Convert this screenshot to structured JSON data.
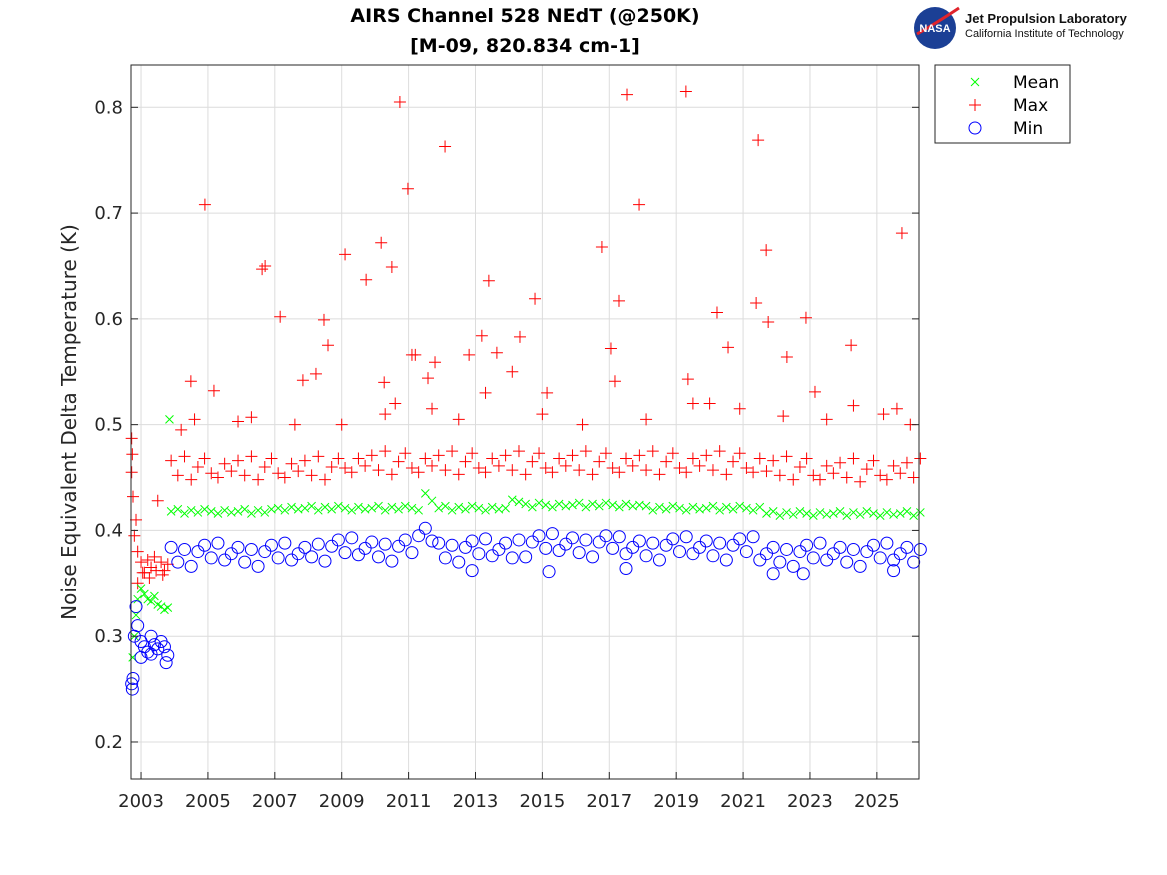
{
  "logo": {
    "org": "Jet Propulsion Laboratory",
    "sub": "California Institute of Technology",
    "badge": "NASA"
  },
  "chart_data": {
    "type": "scatter",
    "title": [
      "AIRS Channel 528 NEdT (@250K)",
      "[M-09, 820.834 cm-1]"
    ],
    "xlabel": "",
    "ylabel": "Noise Equivalent Delta Temperature (K)",
    "xlim": [
      2002.7,
      2026.26
    ],
    "ylim": [
      0.165,
      0.84
    ],
    "xticks": [
      2003,
      2005,
      2007,
      2009,
      2011,
      2013,
      2015,
      2017,
      2019,
      2021,
      2023,
      2025
    ],
    "yticks": [
      0.2,
      0.3,
      0.4,
      0.5,
      0.6,
      0.7,
      0.8
    ],
    "grid": true,
    "legend_position": "outside-top-right",
    "main_x_start": 2003.9,
    "main_x_step": 0.2,
    "series": [
      {
        "name": "Mean",
        "marker": "x",
        "color": "#00ff00",
        "early": [
          [
            2002.75,
            0.28
          ],
          [
            2002.8,
            0.3
          ],
          [
            2002.85,
            0.32
          ],
          [
            2002.9,
            0.335
          ],
          [
            2003.0,
            0.345
          ],
          [
            2003.1,
            0.34
          ],
          [
            2003.2,
            0.335
          ],
          [
            2003.3,
            0.333
          ],
          [
            2003.4,
            0.338
          ],
          [
            2003.5,
            0.33
          ],
          [
            2003.6,
            0.328
          ],
          [
            2003.7,
            0.325
          ],
          [
            2003.8,
            0.327
          ],
          [
            2003.85,
            0.505
          ]
        ],
        "main": [
          0.418,
          0.42,
          0.416,
          0.419,
          0.417,
          0.42,
          0.418,
          0.416,
          0.419,
          0.417,
          0.418,
          0.42,
          0.416,
          0.419,
          0.417,
          0.42,
          0.421,
          0.419,
          0.422,
          0.42,
          0.421,
          0.423,
          0.419,
          0.422,
          0.42,
          0.423,
          0.421,
          0.419,
          0.422,
          0.42,
          0.421,
          0.423,
          0.419,
          0.422,
          0.42,
          0.423,
          0.421,
          0.419,
          0.435,
          0.428,
          0.421,
          0.423,
          0.419,
          0.422,
          0.42,
          0.423,
          0.421,
          0.419,
          0.422,
          0.42,
          0.421,
          0.429,
          0.427,
          0.425,
          0.422,
          0.426,
          0.424,
          0.422,
          0.425,
          0.423,
          0.424,
          0.426,
          0.422,
          0.425,
          0.423,
          0.426,
          0.424,
          0.422,
          0.425,
          0.423,
          0.424,
          0.423,
          0.419,
          0.422,
          0.42,
          0.423,
          0.421,
          0.419,
          0.422,
          0.42,
          0.421,
          0.423,
          0.419,
          0.422,
          0.42,
          0.423,
          0.421,
          0.419,
          0.422,
          0.416,
          0.418,
          0.414,
          0.417,
          0.415,
          0.418,
          0.416,
          0.414,
          0.417,
          0.415,
          0.416,
          0.418,
          0.414,
          0.417,
          0.415,
          0.418,
          0.416,
          0.414,
          0.417,
          0.415,
          0.416,
          0.418,
          0.414,
          0.417
        ],
        "extra": []
      },
      {
        "name": "Max",
        "marker": "+",
        "color": "#ff0000",
        "early": [
          [
            2002.72,
            0.487
          ],
          [
            2002.74,
            0.472
          ],
          [
            2002.72,
            0.455
          ],
          [
            2002.76,
            0.432
          ],
          [
            2002.8,
            0.395
          ],
          [
            2002.85,
            0.41
          ],
          [
            2002.9,
            0.38
          ],
          [
            2003.0,
            0.37
          ],
          [
            2003.1,
            0.36
          ],
          [
            2003.2,
            0.372
          ],
          [
            2003.3,
            0.365
          ],
          [
            2003.4,
            0.375
          ],
          [
            2003.5,
            0.428
          ],
          [
            2003.6,
            0.37
          ],
          [
            2003.7,
            0.362
          ],
          [
            2003.8,
            0.368
          ],
          [
            2002.9,
            0.35
          ],
          [
            2003.05,
            0.36
          ],
          [
            2003.25,
            0.355
          ],
          [
            2003.45,
            0.362
          ],
          [
            2003.65,
            0.358
          ]
        ],
        "main": [
          0.466,
          0.452,
          0.47,
          0.448,
          0.46,
          0.468,
          0.454,
          0.45,
          0.463,
          0.456,
          0.466,
          0.452,
          0.47,
          0.448,
          0.46,
          0.468,
          0.454,
          0.45,
          0.463,
          0.456,
          0.466,
          0.452,
          0.47,
          0.448,
          0.46,
          0.468,
          0.459,
          0.455,
          0.468,
          0.461,
          0.471,
          0.457,
          0.475,
          0.453,
          0.465,
          0.473,
          0.459,
          0.455,
          0.468,
          0.461,
          0.471,
          0.457,
          0.475,
          0.453,
          0.465,
          0.473,
          0.459,
          0.455,
          0.468,
          0.461,
          0.471,
          0.457,
          0.475,
          0.453,
          0.465,
          0.473,
          0.459,
          0.455,
          0.468,
          0.461,
          0.471,
          0.457,
          0.475,
          0.453,
          0.465,
          0.473,
          0.459,
          0.455,
          0.468,
          0.461,
          0.471,
          0.457,
          0.475,
          0.453,
          0.465,
          0.473,
          0.459,
          0.455,
          0.468,
          0.461,
          0.471,
          0.457,
          0.475,
          0.453,
          0.465,
          0.473,
          0.459,
          0.455,
          0.468,
          0.456,
          0.466,
          0.452,
          0.47,
          0.448,
          0.46,
          0.468,
          0.452,
          0.448,
          0.461,
          0.454,
          0.464,
          0.45,
          0.468,
          0.446,
          0.458,
          0.466,
          0.452,
          0.448,
          0.461,
          0.454,
          0.464,
          0.45,
          0.468
        ],
        "extra": [
          [
            2004.91,
            0.708
          ],
          [
            2010.74,
            0.805
          ],
          [
            2010.98,
            0.723
          ],
          [
            2012.09,
            0.763
          ],
          [
            2017.53,
            0.812
          ],
          [
            2017.89,
            0.708
          ],
          [
            2019.29,
            0.815
          ],
          [
            2021.45,
            0.769
          ],
          [
            2021.69,
            0.665
          ],
          [
            2025.75,
            0.681
          ],
          [
            2016.78,
            0.668
          ],
          [
            2006.62,
            0.647
          ],
          [
            2006.71,
            0.65
          ],
          [
            2007.16,
            0.602
          ],
          [
            2009.1,
            0.661
          ],
          [
            2009.73,
            0.637
          ],
          [
            2010.18,
            0.672
          ],
          [
            2010.5,
            0.649
          ],
          [
            2008.47,
            0.599
          ],
          [
            2008.59,
            0.575
          ],
          [
            2013.4,
            0.636
          ],
          [
            2013.19,
            0.584
          ],
          [
            2014.78,
            0.619
          ],
          [
            2014.33,
            0.583
          ],
          [
            2013.64,
            0.568
          ],
          [
            2012.81,
            0.566
          ],
          [
            2011.1,
            0.566
          ],
          [
            2011.2,
            0.566
          ],
          [
            2004.49,
            0.541
          ],
          [
            2005.18,
            0.532
          ],
          [
            2017.05,
            0.572
          ],
          [
            2017.29,
            0.617
          ],
          [
            2017.17,
            0.541
          ],
          [
            2019.35,
            0.543
          ],
          [
            2020.22,
            0.606
          ],
          [
            2020.55,
            0.573
          ],
          [
            2021.39,
            0.615
          ],
          [
            2021.75,
            0.597
          ],
          [
            2022.31,
            0.564
          ],
          [
            2022.88,
            0.601
          ],
          [
            2023.15,
            0.531
          ],
          [
            2024.23,
            0.575
          ],
          [
            2010.27,
            0.54
          ],
          [
            2011.79,
            0.559
          ],
          [
            2011.58,
            0.544
          ],
          [
            2007.84,
            0.542
          ],
          [
            2008.23,
            0.548
          ],
          [
            2015.14,
            0.53
          ],
          [
            2004.2,
            0.495
          ],
          [
            2004.6,
            0.505
          ],
          [
            2005.9,
            0.503
          ],
          [
            2006.3,
            0.507
          ],
          [
            2007.6,
            0.5
          ],
          [
            2009.0,
            0.5
          ],
          [
            2010.3,
            0.51
          ],
          [
            2010.6,
            0.52
          ],
          [
            2011.7,
            0.515
          ],
          [
            2012.5,
            0.505
          ],
          [
            2013.3,
            0.53
          ],
          [
            2014.1,
            0.55
          ],
          [
            2015.0,
            0.51
          ],
          [
            2016.2,
            0.5
          ],
          [
            2018.1,
            0.505
          ],
          [
            2019.5,
            0.52
          ],
          [
            2020.0,
            0.52
          ],
          [
            2020.9,
            0.515
          ],
          [
            2022.2,
            0.508
          ],
          [
            2023.5,
            0.505
          ],
          [
            2024.3,
            0.518
          ],
          [
            2025.2,
            0.51
          ],
          [
            2025.6,
            0.515
          ],
          [
            2026.0,
            0.5
          ]
        ]
      },
      {
        "name": "Min",
        "marker": "o",
        "color": "#0000ff",
        "early": [
          [
            2002.72,
            0.255
          ],
          [
            2002.74,
            0.25
          ],
          [
            2002.76,
            0.26
          ],
          [
            2002.8,
            0.3
          ],
          [
            2002.85,
            0.328
          ],
          [
            2002.9,
            0.31
          ],
          [
            2003.0,
            0.295
          ],
          [
            2003.1,
            0.29
          ],
          [
            2003.2,
            0.285
          ],
          [
            2003.3,
            0.3
          ],
          [
            2003.4,
            0.292
          ],
          [
            2003.5,
            0.288
          ],
          [
            2003.6,
            0.295
          ],
          [
            2003.7,
            0.29
          ],
          [
            2003.8,
            0.282
          ],
          [
            2003.75,
            0.275
          ],
          [
            2003.0,
            0.28
          ],
          [
            2003.3,
            0.283
          ]
        ],
        "main": [
          0.384,
          0.37,
          0.382,
          0.366,
          0.38,
          0.386,
          0.374,
          0.388,
          0.372,
          0.378,
          0.384,
          0.37,
          0.382,
          0.366,
          0.38,
          0.386,
          0.374,
          0.388,
          0.372,
          0.378,
          0.384,
          0.375,
          0.387,
          0.371,
          0.385,
          0.391,
          0.379,
          0.393,
          0.377,
          0.383,
          0.389,
          0.375,
          0.387,
          0.371,
          0.385,
          0.391,
          0.379,
          0.395,
          0.402,
          0.39,
          0.388,
          0.374,
          0.386,
          0.37,
          0.384,
          0.39,
          0.378,
          0.392,
          0.376,
          0.382,
          0.388,
          0.374,
          0.391,
          0.375,
          0.389,
          0.395,
          0.383,
          0.397,
          0.381,
          0.387,
          0.393,
          0.379,
          0.391,
          0.375,
          0.389,
          0.395,
          0.383,
          0.394,
          0.378,
          0.384,
          0.39,
          0.376,
          0.388,
          0.372,
          0.386,
          0.392,
          0.38,
          0.394,
          0.378,
          0.384,
          0.39,
          0.376,
          0.388,
          0.372,
          0.386,
          0.392,
          0.38,
          0.394,
          0.372,
          0.378,
          0.384,
          0.37,
          0.382,
          0.366,
          0.38,
          0.386,
          0.374,
          0.388,
          0.372,
          0.378,
          0.384,
          0.37,
          0.382,
          0.366,
          0.38,
          0.386,
          0.374,
          0.388,
          0.372,
          0.378,
          0.384,
          0.37,
          0.382
        ],
        "extra": [
          [
            2015.2,
            0.361
          ],
          [
            2012.9,
            0.362
          ],
          [
            2022.8,
            0.359
          ],
          [
            2021.9,
            0.359
          ],
          [
            2025.5,
            0.362
          ],
          [
            2017.5,
            0.364
          ]
        ]
      }
    ]
  }
}
